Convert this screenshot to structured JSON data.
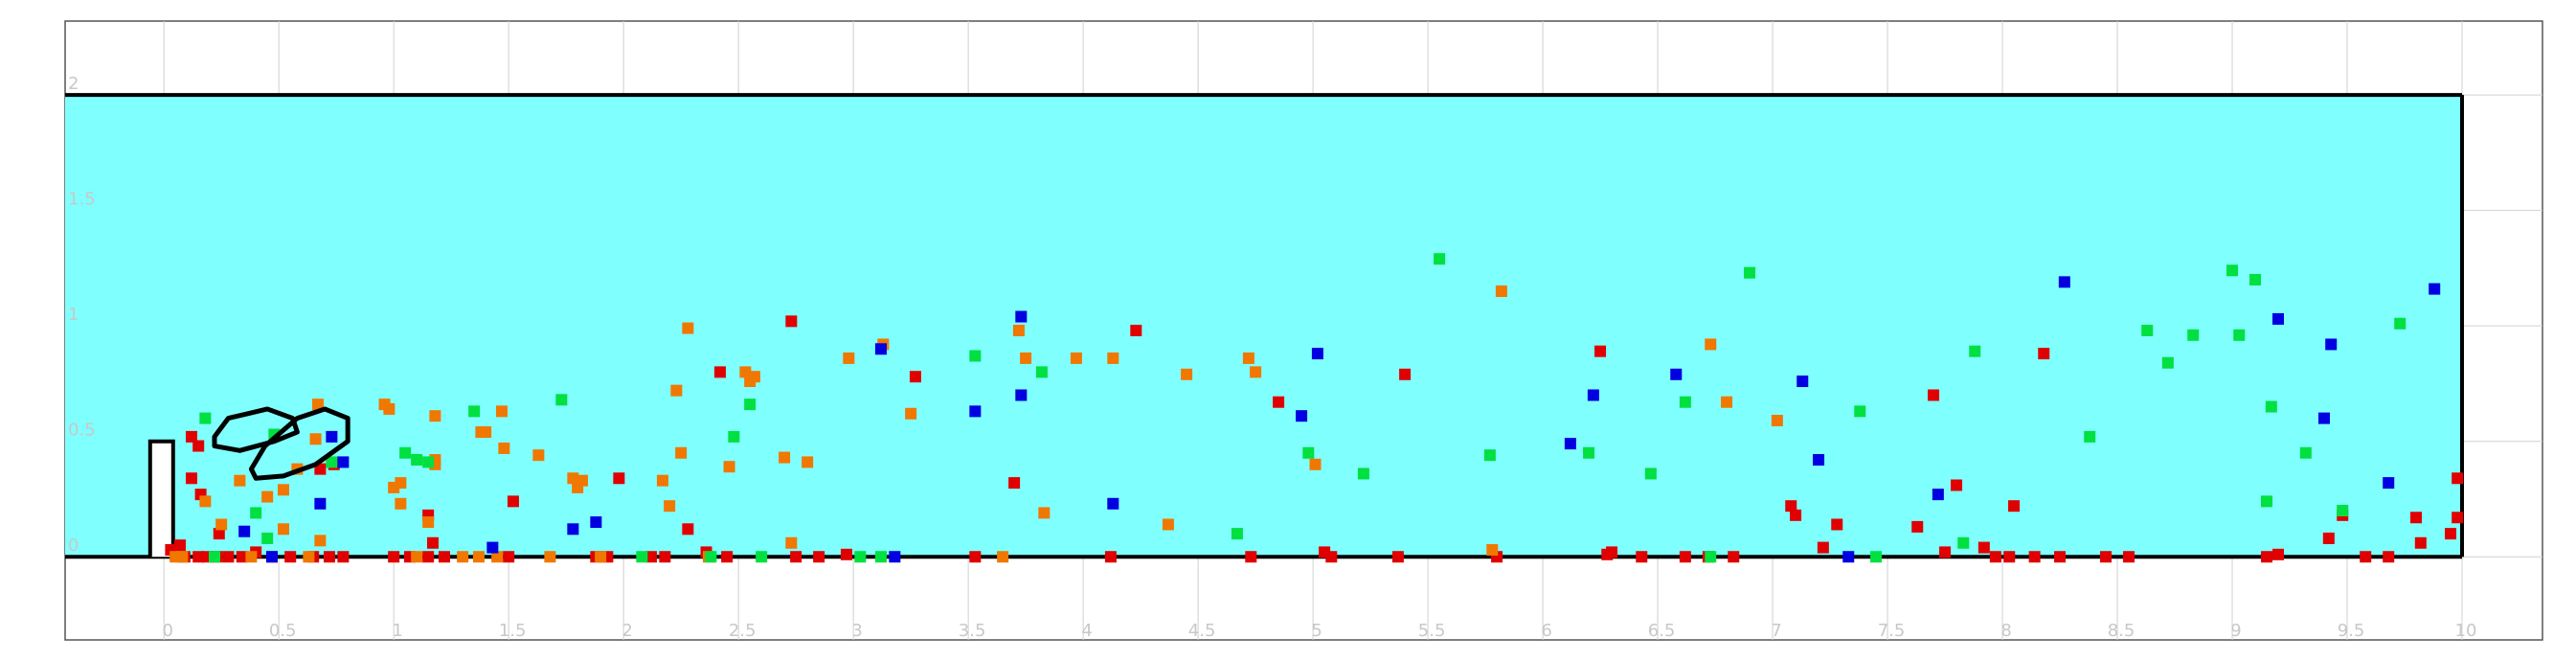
{
  "chart_data": {
    "type": "scatter",
    "title": "",
    "xlabel": "",
    "ylabel": "",
    "xlim": [
      -0.43,
      10.35
    ],
    "ylim": [
      -0.36,
      2.32
    ],
    "x_ticks": [
      "0",
      "0.5",
      "1",
      "1.5",
      "2",
      "2.5",
      "3",
      "3.5",
      "4",
      "4.5",
      "5",
      "5.5",
      "6",
      "6.5",
      "7",
      "7.5",
      "8",
      "8.5",
      "9",
      "9.5",
      "10"
    ],
    "y_ticks": [
      "0",
      "0.5",
      "1",
      "1.5",
      "2"
    ],
    "grid": true,
    "colors": {
      "fluid": "#80ffff",
      "wall": "#000000",
      "grid": "#d0d0d0",
      "tick_text": "#c8c8c8",
      "red": "#e00000",
      "orange": "#f07800",
      "green": "#00e040",
      "blue": "#0000e0"
    },
    "domain": {
      "x": [
        -0.43,
        10.0
      ],
      "y": [
        0.0,
        2.0
      ]
    },
    "series": [
      {
        "color": "red",
        "points": [
          [
            0.03,
            0.03
          ],
          [
            0.05,
            0.01
          ],
          [
            0.07,
            0.05
          ],
          [
            0.09,
            0.0
          ],
          [
            0.12,
            0.52
          ],
          [
            0.15,
            0.48
          ],
          [
            0.12,
            0.34
          ],
          [
            0.16,
            0.27
          ],
          [
            0.15,
            0.0
          ],
          [
            0.19,
            0.0
          ],
          [
            0.24,
            0.1
          ],
          [
            0.23,
            0.0
          ],
          [
            0.28,
            0.0
          ],
          [
            0.34,
            0.0
          ],
          [
            0.4,
            0.02
          ],
          [
            0.47,
            0.0
          ],
          [
            0.55,
            0.0
          ],
          [
            0.65,
            0.0
          ],
          [
            0.72,
            0.0
          ],
          [
            0.78,
            0.0
          ],
          [
            0.68,
            0.38
          ],
          [
            0.74,
            0.4
          ],
          [
            1.0,
            0.0
          ],
          [
            1.07,
            0.0
          ],
          [
            1.15,
            0.18
          ],
          [
            1.17,
            0.06
          ],
          [
            1.15,
            0.0
          ],
          [
            1.22,
            0.0
          ],
          [
            1.5,
            0.0
          ],
          [
            1.52,
            0.24
          ],
          [
            1.88,
            0.0
          ],
          [
            1.93,
            0.0
          ],
          [
            1.98,
            0.34
          ],
          [
            2.12,
            0.0
          ],
          [
            2.18,
            0.0
          ],
          [
            2.28,
            0.12
          ],
          [
            2.36,
            0.02
          ],
          [
            2.45,
            0.0
          ],
          [
            2.42,
            0.8
          ],
          [
            2.73,
            1.02
          ],
          [
            2.75,
            0.0
          ],
          [
            2.85,
            0.0
          ],
          [
            2.97,
            0.01
          ],
          [
            3.27,
            0.78
          ],
          [
            3.53,
            0.0
          ],
          [
            3.7,
            0.32
          ],
          [
            4.12,
            0.0
          ],
          [
            4.23,
            0.98
          ],
          [
            4.73,
            0.0
          ],
          [
            4.85,
            0.67
          ],
          [
            5.05,
            0.02
          ],
          [
            5.08,
            0.0
          ],
          [
            5.37,
            0.0
          ],
          [
            5.4,
            0.79
          ],
          [
            5.8,
            0.0
          ],
          [
            6.25,
            0.89
          ],
          [
            6.28,
            0.01
          ],
          [
            6.3,
            0.02
          ],
          [
            6.43,
            0.0
          ],
          [
            6.62,
            0.0
          ],
          [
            6.72,
            0.0
          ],
          [
            6.83,
            0.0
          ],
          [
            7.08,
            0.22
          ],
          [
            7.1,
            0.18
          ],
          [
            7.22,
            0.04
          ],
          [
            7.28,
            0.14
          ],
          [
            7.63,
            0.13
          ],
          [
            7.7,
            0.7
          ],
          [
            7.75,
            0.02
          ],
          [
            7.8,
            0.31
          ],
          [
            7.92,
            0.04
          ],
          [
            7.97,
            0.0
          ],
          [
            8.03,
            0.0
          ],
          [
            8.05,
            0.22
          ],
          [
            8.14,
            0.0
          ],
          [
            8.18,
            0.88
          ],
          [
            8.25,
            0.0
          ],
          [
            8.45,
            0.0
          ],
          [
            8.55,
            0.0
          ],
          [
            9.15,
            0.0
          ],
          [
            9.2,
            0.01
          ],
          [
            9.42,
            0.08
          ],
          [
            9.48,
            0.18
          ],
          [
            9.58,
            0.0
          ],
          [
            9.68,
            0.0
          ],
          [
            9.8,
            0.17
          ],
          [
            9.82,
            0.06
          ],
          [
            9.95,
            0.1
          ],
          [
            9.98,
            0.34
          ],
          [
            9.98,
            0.17
          ]
        ]
      },
      {
        "color": "orange",
        "points": [
          [
            0.05,
            0.0
          ],
          [
            0.08,
            0.0
          ],
          [
            0.18,
            0.24
          ],
          [
            0.25,
            0.14
          ],
          [
            0.33,
            0.33
          ],
          [
            0.38,
            0.0
          ],
          [
            0.45,
            0.26
          ],
          [
            0.52,
            0.29
          ],
          [
            0.52,
            0.12
          ],
          [
            0.58,
            0.38
          ],
          [
            0.63,
            0.0
          ],
          [
            0.66,
            0.51
          ],
          [
            0.68,
            0.07
          ],
          [
            0.67,
            0.66
          ],
          [
            0.96,
            0.66
          ],
          [
            0.98,
            0.64
          ],
          [
            1.0,
            0.3
          ],
          [
            1.03,
            0.32
          ],
          [
            1.03,
            0.23
          ],
          [
            1.1,
            0.0
          ],
          [
            1.18,
            0.42
          ],
          [
            1.18,
            0.4
          ],
          [
            1.18,
            0.61
          ],
          [
            1.15,
            0.15
          ],
          [
            1.3,
            0.0
          ],
          [
            1.37,
            0.0
          ],
          [
            1.38,
            0.54
          ],
          [
            1.4,
            0.54
          ],
          [
            1.45,
            0.0
          ],
          [
            1.47,
            0.63
          ],
          [
            1.48,
            0.47
          ],
          [
            1.63,
            0.44
          ],
          [
            1.68,
            0.0
          ],
          [
            1.78,
            0.34
          ],
          [
            1.8,
            0.3
          ],
          [
            1.82,
            0.33
          ],
          [
            1.9,
            0.0
          ],
          [
            2.17,
            0.33
          ],
          [
            2.2,
            0.22
          ],
          [
            2.23,
            0.72
          ],
          [
            2.25,
            0.45
          ],
          [
            2.28,
            0.99
          ],
          [
            2.37,
            0.0
          ],
          [
            2.46,
            0.39
          ],
          [
            2.53,
            0.8
          ],
          [
            2.55,
            0.76
          ],
          [
            2.57,
            0.78
          ],
          [
            2.7,
            0.43
          ],
          [
            2.73,
            0.06
          ],
          [
            2.8,
            0.41
          ],
          [
            2.98,
            0.86
          ],
          [
            3.13,
            0.92
          ],
          [
            3.25,
            0.62
          ],
          [
            3.65,
            0.0
          ],
          [
            3.72,
            0.98
          ],
          [
            3.75,
            0.86
          ],
          [
            3.83,
            0.19
          ],
          [
            3.97,
            0.86
          ],
          [
            4.13,
            0.86
          ],
          [
            4.37,
            0.14
          ],
          [
            4.45,
            0.79
          ],
          [
            4.72,
            0.86
          ],
          [
            4.75,
            0.8
          ],
          [
            5.01,
            0.4
          ],
          [
            5.78,
            0.03
          ],
          [
            5.82,
            1.15
          ],
          [
            6.73,
            0.92
          ],
          [
            6.8,
            0.67
          ],
          [
            7.02,
            0.59
          ]
        ]
      },
      {
        "color": "green",
        "points": [
          [
            0.18,
            0.6
          ],
          [
            0.22,
            0.0
          ],
          [
            0.4,
            0.19
          ],
          [
            0.45,
            0.08
          ],
          [
            0.48,
            0.53
          ],
          [
            0.73,
            0.41
          ],
          [
            1.05,
            0.45
          ],
          [
            1.1,
            0.42
          ],
          [
            1.15,
            0.41
          ],
          [
            1.35,
            0.63
          ],
          [
            1.73,
            0.68
          ],
          [
            2.08,
            0.0
          ],
          [
            2.38,
            0.0
          ],
          [
            2.48,
            0.52
          ],
          [
            2.55,
            0.66
          ],
          [
            2.6,
            0.0
          ],
          [
            3.03,
            0.0
          ],
          [
            3.12,
            0.0
          ],
          [
            3.53,
            0.87
          ],
          [
            3.82,
            0.8
          ],
          [
            4.67,
            0.1
          ],
          [
            4.98,
            0.45
          ],
          [
            5.22,
            0.36
          ],
          [
            5.55,
            1.29
          ],
          [
            5.77,
            0.44
          ],
          [
            6.2,
            0.45
          ],
          [
            6.47,
            0.36
          ],
          [
            6.62,
            0.67
          ],
          [
            6.73,
            0.0
          ],
          [
            6.9,
            1.23
          ],
          [
            7.38,
            0.63
          ],
          [
            7.45,
            0.0
          ],
          [
            7.83,
            0.06
          ],
          [
            7.88,
            0.89
          ],
          [
            8.38,
            0.52
          ],
          [
            8.63,
            0.98
          ],
          [
            8.72,
            0.84
          ],
          [
            8.83,
            0.96
          ],
          [
            9.0,
            1.24
          ],
          [
            9.03,
            0.96
          ],
          [
            9.1,
            1.2
          ],
          [
            9.15,
            0.24
          ],
          [
            9.17,
            0.65
          ],
          [
            9.32,
            0.45
          ],
          [
            9.48,
            0.2
          ],
          [
            9.73,
            1.01
          ]
        ]
      },
      {
        "color": "blue",
        "points": [
          [
            0.35,
            0.11
          ],
          [
            0.47,
            0.0
          ],
          [
            0.68,
            0.23
          ],
          [
            0.73,
            0.52
          ],
          [
            0.78,
            0.41
          ],
          [
            1.43,
            0.04
          ],
          [
            1.78,
            0.12
          ],
          [
            1.88,
            0.15
          ],
          [
            3.12,
            0.9
          ],
          [
            3.18,
            0.0
          ],
          [
            3.53,
            0.63
          ],
          [
            3.73,
            1.04
          ],
          [
            3.73,
            0.7
          ],
          [
            4.13,
            0.23
          ],
          [
            4.95,
            0.61
          ],
          [
            5.02,
            0.88
          ],
          [
            6.12,
            0.49
          ],
          [
            6.22,
            0.7
          ],
          [
            6.58,
            0.79
          ],
          [
            7.13,
            0.76
          ],
          [
            7.2,
            0.42
          ],
          [
            7.33,
            0.0
          ],
          [
            7.72,
            0.27
          ],
          [
            8.27,
            1.19
          ],
          [
            9.2,
            1.03
          ],
          [
            9.4,
            0.6
          ],
          [
            9.43,
            0.92
          ],
          [
            9.68,
            0.32
          ],
          [
            9.88,
            1.16
          ]
        ]
      }
    ]
  }
}
